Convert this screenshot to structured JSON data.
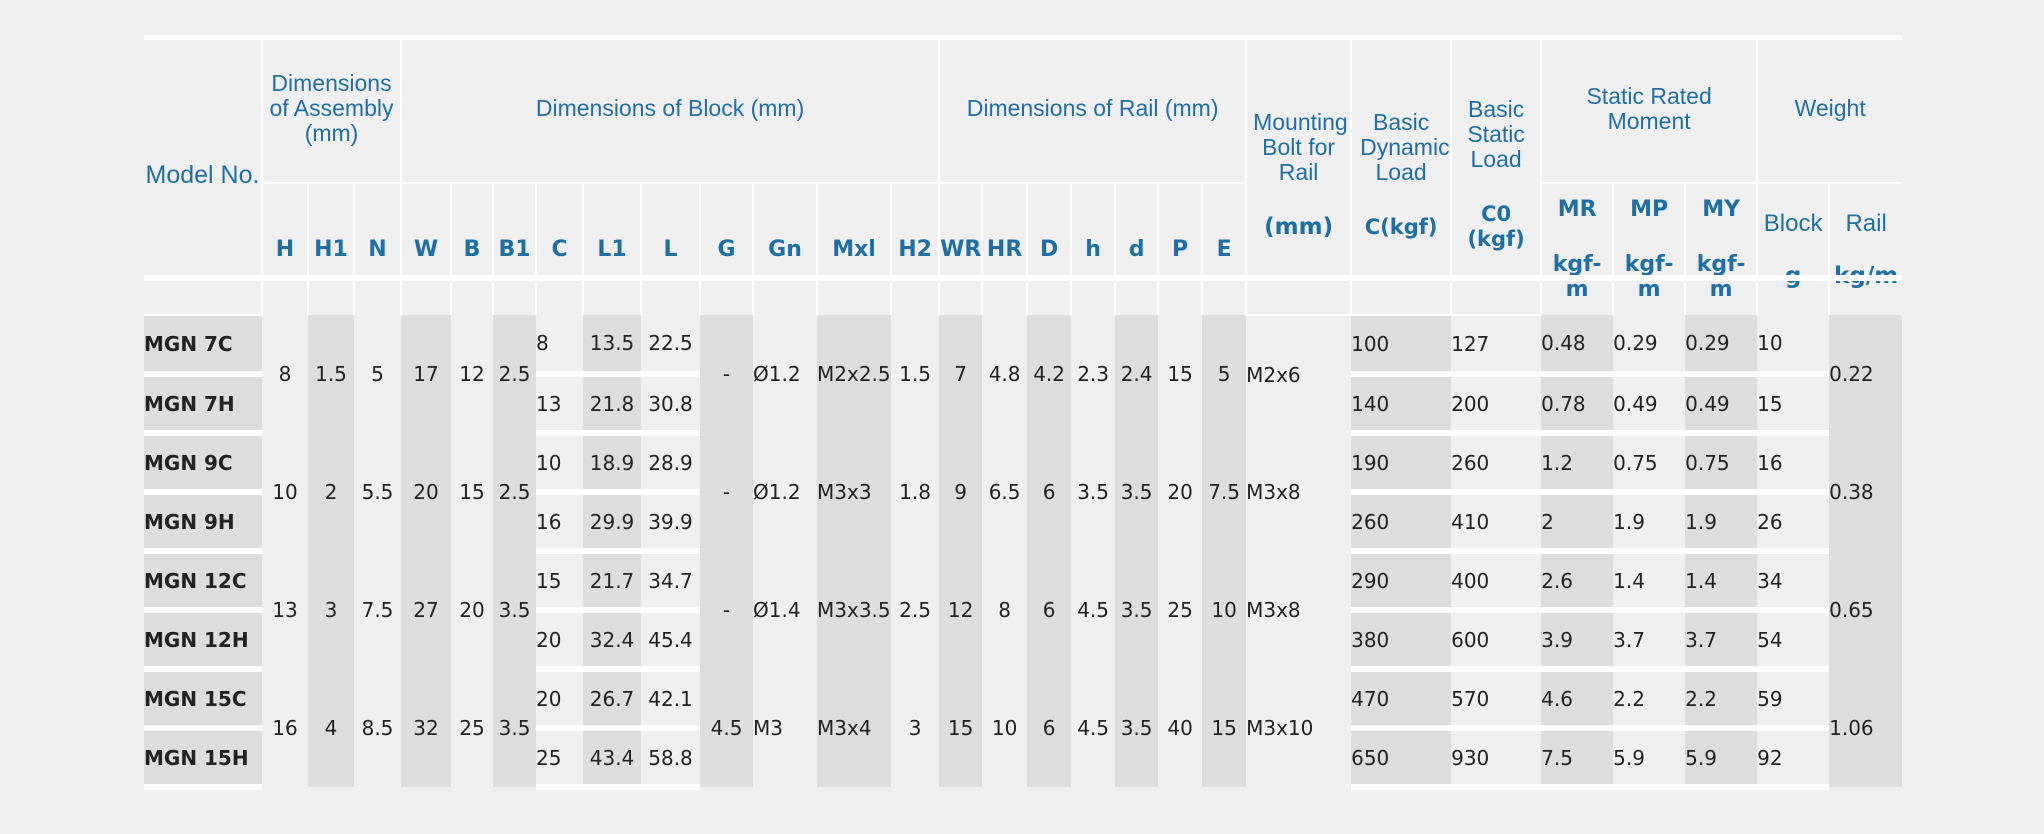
{
  "headers": {
    "model": "Model No.",
    "assembly": "Dimensions of Assembly (mm)",
    "block": "Dimensions of Block (mm)",
    "rail": "Dimensions of Rail (mm)",
    "bolt": "Mounting Bolt for Rail",
    "bolt_unit": "(mm)",
    "dyn": "Basic Dynamic Load",
    "dyn_unit": "C(kgf)",
    "stat": "Basic Static Load",
    "stat_unit": "C0 (kgf)",
    "moment": "Static Rated Moment",
    "moment_unit": "kgf-m",
    "weight": "Weight",
    "block_w": "Block",
    "block_w_unit": "g",
    "rail_w": "Rail",
    "rail_w_unit": "kg/m"
  },
  "columns": {
    "H": "H",
    "H1": "H1",
    "N": "N",
    "W": "W",
    "B": "B",
    "B1": "B1",
    "C": "C",
    "L1": "L1",
    "L": "L",
    "G": "G",
    "Gn": "Gn",
    "Mxl": "Mxl",
    "H2": "H2",
    "WR": "WR",
    "HR": "HR",
    "D": "D",
    "h": "h",
    "d": "d",
    "P": "P",
    "E": "E",
    "MR": "MR",
    "MP": "MP",
    "MY": "MY"
  },
  "groups": [
    {
      "H": "8",
      "H1": "1.5",
      "N": "5",
      "W": "17",
      "B": "12",
      "B1": "2.5",
      "G": "-",
      "Gn": "Ø1.2",
      "Mxl": "M2x2.5",
      "H2": "1.5",
      "WR": "7",
      "HR": "4.8",
      "D": "4.2",
      "h": "2.3",
      "d": "2.4",
      "P": "15",
      "E": "5",
      "bolt": "M2x6",
      "rail": "0.22",
      "rows": [
        {
          "model": "MGN 7C",
          "C": "8",
          "L1": "13.5",
          "L": "22.5",
          "dyn": "100",
          "stat": "127",
          "MR": "0.48",
          "MP": "0.29",
          "MY": "0.29",
          "block": "10"
        },
        {
          "model": "MGN 7H",
          "C": "13",
          "L1": "21.8",
          "L": "30.8",
          "dyn": "140",
          "stat": "200",
          "MR": "0.78",
          "MP": "0.49",
          "MY": "0.49",
          "block": "15"
        }
      ]
    },
    {
      "H": "10",
      "H1": "2",
      "N": "5.5",
      "W": "20",
      "B": "15",
      "B1": "2.5",
      "G": "-",
      "Gn": "Ø1.2",
      "Mxl": "M3x3",
      "H2": "1.8",
      "WR": "9",
      "HR": "6.5",
      "D": "6",
      "h": "3.5",
      "d": "3.5",
      "P": "20",
      "E": "7.5",
      "bolt": "M3x8",
      "rail": "0.38",
      "rows": [
        {
          "model": "MGN 9C",
          "C": "10",
          "L1": "18.9",
          "L": "28.9",
          "dyn": "190",
          "stat": "260",
          "MR": "1.2",
          "MP": "0.75",
          "MY": "0.75",
          "block": "16"
        },
        {
          "model": "MGN 9H",
          "C": "16",
          "L1": "29.9",
          "L": "39.9",
          "dyn": "260",
          "stat": "410",
          "MR": "2",
          "MP": "1.9",
          "MY": "1.9",
          "block": "26"
        }
      ]
    },
    {
      "H": "13",
      "H1": "3",
      "N": "7.5",
      "W": "27",
      "B": "20",
      "B1": "3.5",
      "G": "-",
      "Gn": "Ø1.4",
      "Mxl": "M3x3.5",
      "H2": "2.5",
      "WR": "12",
      "HR": "8",
      "D": "6",
      "h": "4.5",
      "d": "3.5",
      "P": "25",
      "E": "10",
      "bolt": "M3x8",
      "rail": "0.65",
      "rows": [
        {
          "model": "MGN 12C",
          "C": "15",
          "L1": "21.7",
          "L": "34.7",
          "dyn": "290",
          "stat": "400",
          "MR": "2.6",
          "MP": "1.4",
          "MY": "1.4",
          "block": "34"
        },
        {
          "model": "MGN 12H",
          "C": "20",
          "L1": "32.4",
          "L": "45.4",
          "dyn": "380",
          "stat": "600",
          "MR": "3.9",
          "MP": "3.7",
          "MY": "3.7",
          "block": "54"
        }
      ]
    },
    {
      "H": "16",
      "H1": "4",
      "N": "8.5",
      "W": "32",
      "B": "25",
      "B1": "3.5",
      "G": "4.5",
      "Gn": "M3",
      "Mxl": "M3x4",
      "H2": "3",
      "WR": "15",
      "HR": "10",
      "D": "6",
      "h": "4.5",
      "d": "3.5",
      "P": "40",
      "E": "15",
      "bolt": "M3x10",
      "rail": "1.06",
      "rows": [
        {
          "model": "MGN 15C",
          "C": "20",
          "L1": "26.7",
          "L": "42.1",
          "dyn": "470",
          "stat": "570",
          "MR": "4.6",
          "MP": "2.2",
          "MY": "2.2",
          "block": "59"
        },
        {
          "model": "MGN 15H",
          "C": "25",
          "L1": "43.4",
          "L": "58.8",
          "dyn": "650",
          "stat": "930",
          "MR": "7.5",
          "MP": "5.9",
          "MY": "5.9",
          "block": "92"
        }
      ]
    }
  ]
}
